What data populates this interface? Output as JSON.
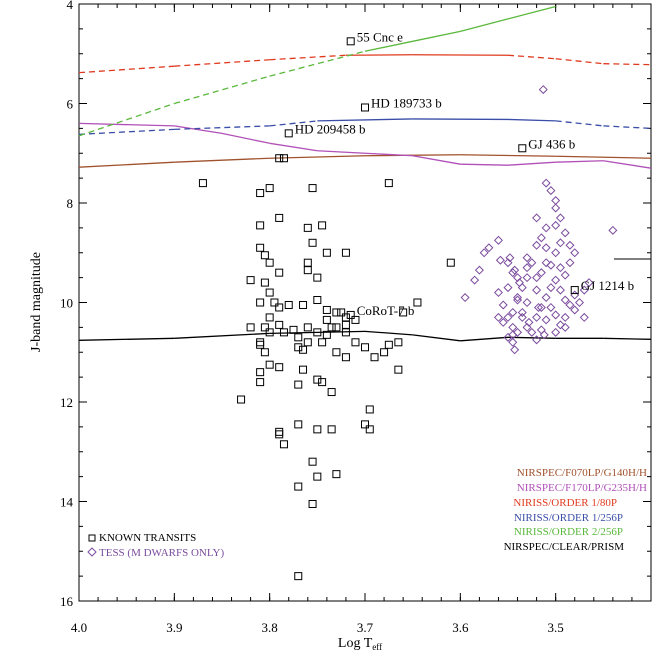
{
  "chart_data": {
    "type": "scatter",
    "title": "",
    "xlabel": "Log T",
    "xlabel_sub": "eff",
    "ylabel": "J-band magnitude",
    "xlim": [
      4.0,
      3.4
    ],
    "ylim": [
      16,
      4
    ],
    "x_ticks": [
      {
        "value": 4.0,
        "label": "4.0"
      },
      {
        "value": 3.9,
        "label": "3.9"
      },
      {
        "value": 3.8,
        "label": "3.8"
      },
      {
        "value": 3.7,
        "label": "3.7"
      },
      {
        "value": 3.6,
        "label": "3.6"
      },
      {
        "value": 3.5,
        "label": "3.5"
      }
    ],
    "y_ticks": [
      {
        "value": 4,
        "label": "4"
      },
      {
        "value": 6,
        "label": "6"
      },
      {
        "value": 8,
        "label": "8"
      },
      {
        "value": 10,
        "label": "10"
      },
      {
        "value": 12,
        "label": "12"
      },
      {
        "value": 14,
        "label": "14"
      },
      {
        "value": 16,
        "label": "16"
      }
    ],
    "curves": [
      {
        "name": "NIRSPEC/F070LP/G140H/H",
        "color": "#a0522d",
        "style": "solid",
        "points": [
          [
            4.0,
            7.28
          ],
          [
            3.9,
            7.18
          ],
          [
            3.8,
            7.1
          ],
          [
            3.7,
            7.05
          ],
          [
            3.6,
            7.03
          ],
          [
            3.5,
            7.06
          ],
          [
            3.4,
            7.1
          ]
        ]
      },
      {
        "name": "NIRSPEC/F170LP/G235H/H",
        "color": "#b050b8",
        "style": "solid",
        "points": [
          [
            4.0,
            6.4
          ],
          [
            3.9,
            6.45
          ],
          [
            3.85,
            6.6
          ],
          [
            3.8,
            6.8
          ],
          [
            3.75,
            6.95
          ],
          [
            3.7,
            7.0
          ],
          [
            3.65,
            7.05
          ],
          [
            3.6,
            7.22
          ],
          [
            3.55,
            7.24
          ],
          [
            3.5,
            7.18
          ],
          [
            3.45,
            7.15
          ],
          [
            3.4,
            7.3
          ]
        ]
      },
      {
        "name": "NIRISS/ORDER 1/80P",
        "color": "#e03a1e",
        "style": "mixed",
        "solid_range": [
          3.55,
          3.72
        ],
        "points": [
          [
            4.0,
            5.38
          ],
          [
            3.9,
            5.25
          ],
          [
            3.8,
            5.12
          ],
          [
            3.72,
            5.03
          ],
          [
            3.65,
            5.02
          ],
          [
            3.55,
            5.03
          ],
          [
            3.5,
            5.1
          ],
          [
            3.45,
            5.2
          ],
          [
            3.4,
            5.22
          ]
        ]
      },
      {
        "name": "NIRISS/ORDER 1/256P",
        "color": "#3a4ea8",
        "style": "mixed",
        "solid_range": [
          3.5,
          3.75
        ],
        "points": [
          [
            4.0,
            6.62
          ],
          [
            3.9,
            6.52
          ],
          [
            3.8,
            6.45
          ],
          [
            3.75,
            6.35
          ],
          [
            3.65,
            6.31
          ],
          [
            3.55,
            6.32
          ],
          [
            3.5,
            6.35
          ],
          [
            3.45,
            6.45
          ],
          [
            3.4,
            6.5
          ]
        ]
      },
      {
        "name": "NIRISS/ORDER 2/256P",
        "color": "#5ab83c",
        "style": "mixed",
        "solid_range": [
          3.5,
          3.7
        ],
        "points": [
          [
            4.0,
            6.65
          ],
          [
            3.9,
            6.0
          ],
          [
            3.8,
            5.45
          ],
          [
            3.7,
            4.95
          ],
          [
            3.65,
            4.75
          ],
          [
            3.6,
            4.55
          ],
          [
            3.55,
            4.3
          ],
          [
            3.5,
            4.05
          ]
        ]
      },
      {
        "name": "NIRSPEC/CLEAR/PRISM",
        "color": "#000000",
        "style": "solid",
        "points": [
          [
            4.0,
            10.76
          ],
          [
            3.9,
            10.72
          ],
          [
            3.8,
            10.62
          ],
          [
            3.7,
            10.58
          ],
          [
            3.65,
            10.65
          ],
          [
            3.6,
            10.77
          ],
          [
            3.55,
            10.7
          ],
          [
            3.5,
            10.72
          ],
          [
            3.45,
            10.72
          ],
          [
            3.4,
            10.74
          ]
        ]
      }
    ],
    "series": [
      {
        "name": "KNOWN TRANSITS",
        "marker": "square",
        "color": "#000000",
        "points": [
          [
            3.87,
            7.6
          ],
          [
            3.81,
            7.8
          ],
          [
            3.79,
            7.1
          ],
          [
            3.785,
            7.1
          ],
          [
            3.8,
            7.7
          ],
          [
            3.755,
            7.7
          ],
          [
            3.675,
            7.6
          ],
          [
            3.79,
            8.3
          ],
          [
            3.81,
            8.45
          ],
          [
            3.76,
            8.5
          ],
          [
            3.745,
            8.45
          ],
          [
            3.755,
            8.8
          ],
          [
            3.74,
            9.0
          ],
          [
            3.72,
            9.0
          ],
          [
            3.81,
            8.9
          ],
          [
            3.805,
            9.05
          ],
          [
            3.79,
            9.4
          ],
          [
            3.8,
            9.2
          ],
          [
            3.76,
            9.2
          ],
          [
            3.75,
            9.5
          ],
          [
            3.76,
            9.35
          ],
          [
            3.82,
            9.55
          ],
          [
            3.805,
            9.6
          ],
          [
            3.8,
            9.8
          ],
          [
            3.81,
            10.0
          ],
          [
            3.795,
            10.0
          ],
          [
            3.78,
            10.05
          ],
          [
            3.765,
            10.05
          ],
          [
            3.75,
            9.95
          ],
          [
            3.74,
            10.15
          ],
          [
            3.73,
            10.2
          ],
          [
            3.72,
            10.3
          ],
          [
            3.74,
            10.35
          ],
          [
            3.76,
            10.5
          ],
          [
            3.775,
            10.55
          ],
          [
            3.79,
            10.45
          ],
          [
            3.8,
            10.3
          ],
          [
            3.805,
            10.5
          ],
          [
            3.82,
            10.5
          ],
          [
            3.785,
            10.6
          ],
          [
            3.77,
            10.7
          ],
          [
            3.77,
            10.9
          ],
          [
            3.75,
            10.6
          ],
          [
            3.74,
            10.65
          ],
          [
            3.73,
            10.5
          ],
          [
            3.72,
            10.6
          ],
          [
            3.71,
            10.8
          ],
          [
            3.7,
            10.9
          ],
          [
            3.69,
            11.1
          ],
          [
            3.68,
            11.0
          ],
          [
            3.675,
            10.85
          ],
          [
            3.665,
            10.8
          ],
          [
            3.645,
            10.0
          ],
          [
            3.66,
            10.2
          ],
          [
            3.61,
            9.2
          ],
          [
            3.76,
            10.8
          ],
          [
            3.765,
            10.95
          ],
          [
            3.745,
            10.8
          ],
          [
            3.73,
            11.0
          ],
          [
            3.72,
            11.1
          ],
          [
            3.81,
            10.8
          ],
          [
            3.805,
            11.0
          ],
          [
            3.8,
            11.25
          ],
          [
            3.79,
            11.3
          ],
          [
            3.81,
            11.4
          ],
          [
            3.81,
            11.6
          ],
          [
            3.77,
            11.65
          ],
          [
            3.75,
            11.55
          ],
          [
            3.745,
            11.6
          ],
          [
            3.735,
            11.8
          ],
          [
            3.83,
            11.95
          ],
          [
            3.695,
            12.15
          ],
          [
            3.7,
            12.45
          ],
          [
            3.695,
            12.55
          ],
          [
            3.77,
            12.45
          ],
          [
            3.79,
            12.6
          ],
          [
            3.79,
            12.65
          ],
          [
            3.785,
            12.85
          ],
          [
            3.75,
            12.55
          ],
          [
            3.735,
            12.55
          ],
          [
            3.755,
            13.2
          ],
          [
            3.75,
            13.5
          ],
          [
            3.73,
            13.45
          ],
          [
            3.77,
            13.7
          ],
          [
            3.755,
            14.05
          ],
          [
            3.665,
            11.35
          ],
          [
            3.765,
            11.35
          ],
          [
            3.79,
            10.1
          ],
          [
            3.725,
            10.2
          ],
          [
            3.71,
            10.35
          ],
          [
            3.72,
            10.45
          ],
          [
            3.735,
            10.5
          ],
          [
            3.8,
            10.6
          ],
          [
            3.81,
            10.85
          ],
          [
            3.77,
            15.5
          ]
        ]
      },
      {
        "name": "TESS (M DWARFS ONLY)",
        "marker": "diamond",
        "color": "#7b4c9e",
        "points": [
          [
            3.513,
            5.72
          ],
          [
            3.595,
            9.9
          ],
          [
            3.585,
            9.55
          ],
          [
            3.58,
            9.35
          ],
          [
            3.575,
            9.0
          ],
          [
            3.57,
            8.9
          ],
          [
            3.56,
            8.75
          ],
          [
            3.558,
            9.15
          ],
          [
            3.55,
            9.2
          ],
          [
            3.545,
            9.4
          ],
          [
            3.54,
            9.5
          ],
          [
            3.55,
            9.7
          ],
          [
            3.54,
            9.9
          ],
          [
            3.535,
            10.2
          ],
          [
            3.53,
            10.5
          ],
          [
            3.525,
            10.6
          ],
          [
            3.52,
            10.3
          ],
          [
            3.515,
            10.1
          ],
          [
            3.51,
            9.9
          ],
          [
            3.505,
            9.7
          ],
          [
            3.5,
            9.55
          ],
          [
            3.495,
            9.3
          ],
          [
            3.49,
            9.45
          ],
          [
            3.485,
            9.2
          ],
          [
            3.48,
            9.0
          ],
          [
            3.44,
            8.55
          ],
          [
            3.52,
            8.3
          ],
          [
            3.515,
            8.7
          ],
          [
            3.51,
            8.9
          ],
          [
            3.5,
            8.1
          ],
          [
            3.505,
            7.75
          ],
          [
            3.51,
            7.6
          ],
          [
            3.5,
            7.95
          ],
          [
            3.495,
            8.3
          ],
          [
            3.49,
            8.6
          ],
          [
            3.53,
            9.1
          ],
          [
            3.53,
            9.3
          ],
          [
            3.53,
            9.5
          ],
          [
            3.535,
            9.7
          ],
          [
            3.54,
            9.95
          ],
          [
            3.545,
            10.2
          ],
          [
            3.545,
            10.5
          ],
          [
            3.545,
            10.8
          ],
          [
            3.543,
            10.95
          ],
          [
            3.55,
            10.3
          ],
          [
            3.555,
            10.4
          ],
          [
            3.56,
            10.3
          ],
          [
            3.555,
            10.05
          ],
          [
            3.56,
            9.8
          ],
          [
            3.52,
            10.75
          ],
          [
            3.515,
            10.55
          ],
          [
            3.51,
            10.35
          ],
          [
            3.505,
            10.1
          ],
          [
            3.5,
            10.25
          ],
          [
            3.495,
            10.45
          ],
          [
            3.49,
            10.3
          ],
          [
            3.485,
            10.05
          ],
          [
            3.48,
            9.85
          ],
          [
            3.475,
            10.0
          ],
          [
            3.47,
            9.75
          ],
          [
            3.465,
            9.6
          ],
          [
            3.52,
            9.75
          ],
          [
            3.52,
            9.5
          ],
          [
            3.525,
            9.2
          ],
          [
            3.51,
            9.2
          ],
          [
            3.515,
            9.4
          ],
          [
            3.5,
            9.0
          ],
          [
            3.505,
            9.25
          ],
          [
            3.495,
            9.75
          ],
          [
            3.49,
            9.95
          ],
          [
            3.48,
            10.15
          ],
          [
            3.47,
            10.3
          ],
          [
            3.53,
            10.0
          ],
          [
            3.535,
            10.3
          ],
          [
            3.54,
            10.6
          ],
          [
            3.545,
            10.65
          ],
          [
            3.55,
            10.7
          ],
          [
            3.528,
            10.4
          ],
          [
            3.512,
            10.65
          ],
          [
            3.5,
            10.6
          ],
          [
            3.49,
            10.5
          ],
          [
            3.52,
            8.85
          ],
          [
            3.51,
            8.5
          ],
          [
            3.5,
            8.45
          ],
          [
            3.495,
            8.8
          ],
          [
            3.485,
            8.85
          ],
          [
            3.548,
            9.1
          ],
          [
            3.543,
            9.35
          ],
          [
            3.538,
            9.6
          ],
          [
            3.518,
            10.1
          ]
        ]
      }
    ],
    "annotations": [
      {
        "text": "55 Cnc e",
        "x": 3.715,
        "y": 4.75
      },
      {
        "text": "HD 189733 b",
        "x": 3.7,
        "y": 6.08
      },
      {
        "text": "HD 209458 b",
        "x": 3.78,
        "y": 6.6
      },
      {
        "text": "GJ 436 b",
        "x": 3.535,
        "y": 6.9
      },
      {
        "text": "GJ 1214 b",
        "x": 3.48,
        "y": 9.75
      },
      {
        "text": "CoRoT-7 b",
        "x": 3.715,
        "y": 10.25
      }
    ],
    "legend_position": "bottom-left",
    "curve_legend_position": "bottom-right"
  }
}
